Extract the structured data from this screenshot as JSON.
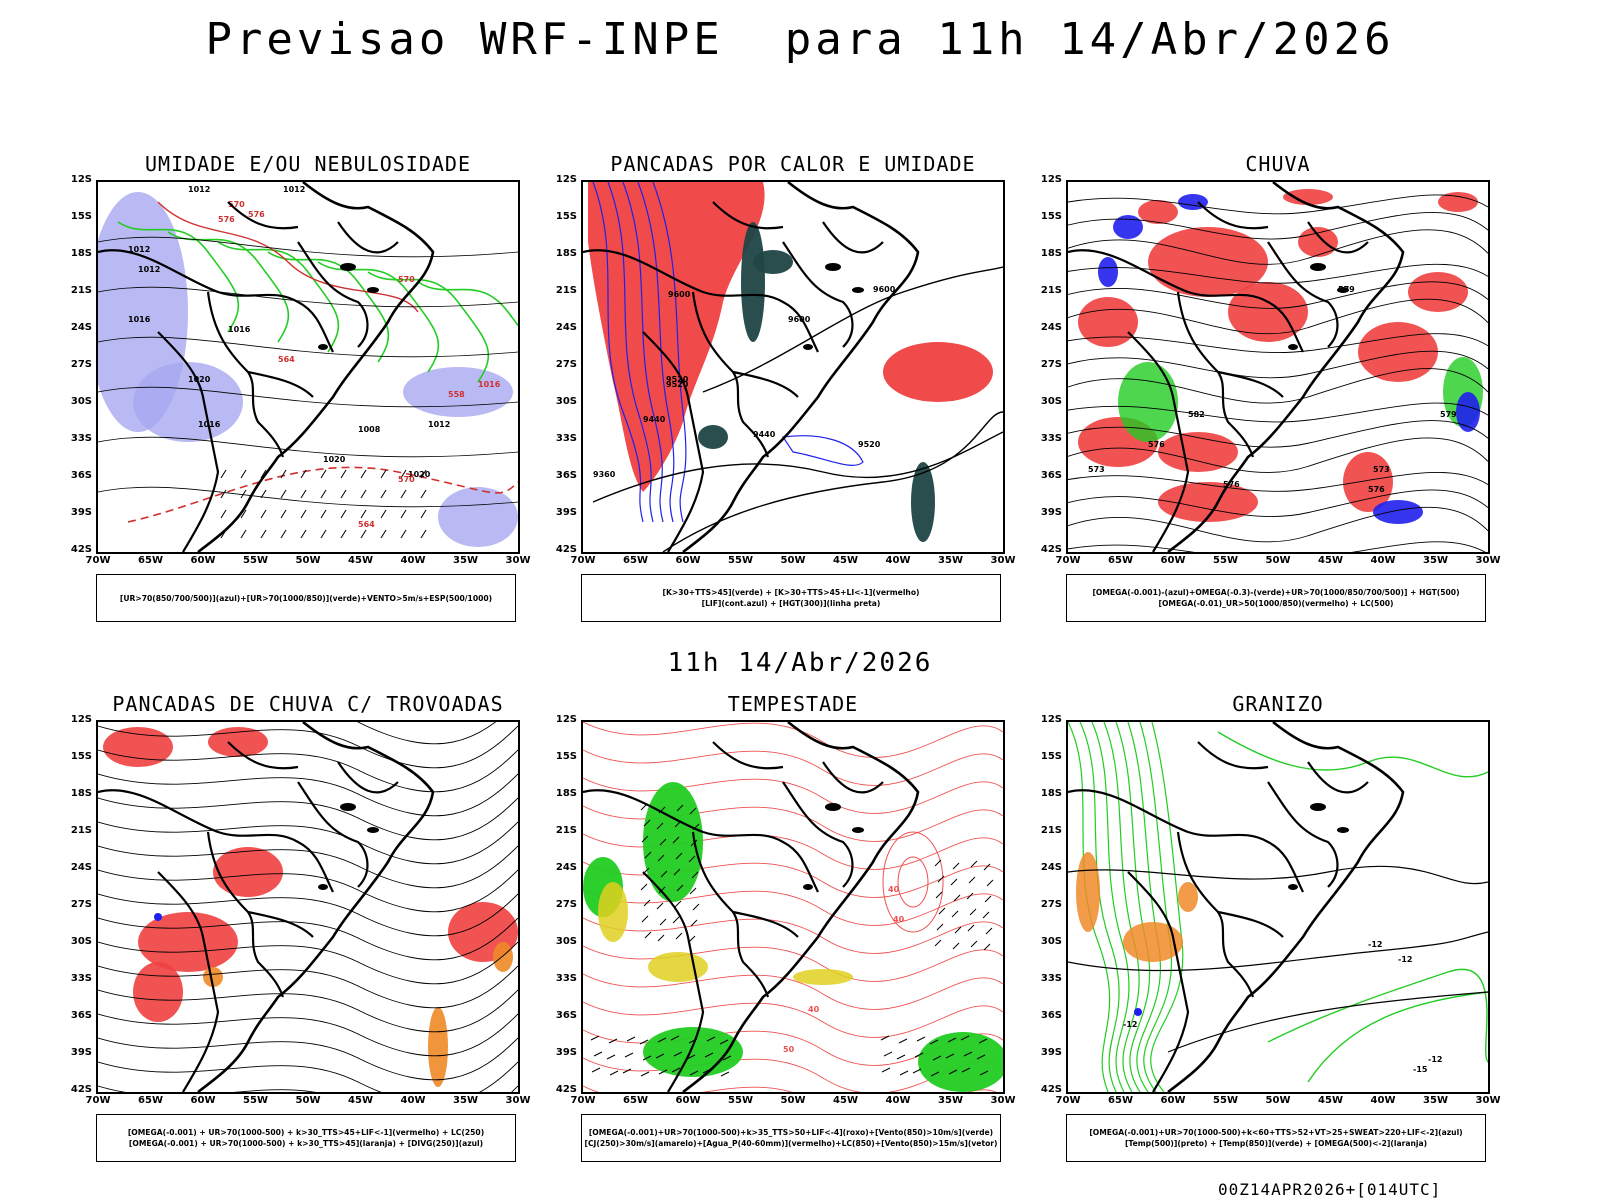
{
  "main_title": "Previsao WRF-INPE  para 11h 14/Abr/2026",
  "mid_title": "11h 14/Abr/2026",
  "footer": "00Z14APR2026+[014UTC]",
  "lat_ticks": [
    "12S",
    "15S",
    "18S",
    "21S",
    "24S",
    "27S",
    "30S",
    "33S",
    "36S",
    "39S",
    "42S"
  ],
  "lon_ticks": [
    "70W",
    "65W",
    "60W",
    "55W",
    "50W",
    "45W",
    "40W",
    "35W",
    "30W"
  ],
  "colors": {
    "red": "#f04040",
    "blue": "#2020ee",
    "green": "#22cc22",
    "lavender": "#a8a8f0",
    "darkteal": "#1f4545",
    "orange": "#f08a28",
    "yellow": "#e0d020",
    "black": "#000000"
  },
  "panels": [
    {
      "title": "UMIDADE E/OU NEBULOSIDADE",
      "legend": [
        "[UR>70(850/700/500)](azul)+[UR>70(1000/850)](verde)+VENTO>5m/s+ESP(500/1000)"
      ],
      "contour_labels": [
        "1012",
        "1012",
        "1012",
        "1016",
        "1016",
        "1016",
        "1008",
        "1012",
        "1020",
        "1020",
        "1020",
        "1012",
        "570",
        "576",
        "576",
        "570",
        "564",
        "558",
        "564",
        "570",
        "1016"
      ]
    },
    {
      "title": "PANCADAS POR CALOR E UMIDADE",
      "legend": [
        "[K>30+TTS>45](verde) + [K>30+TTS>45+LI<-1](vermelho)",
        "[LIF](cont.azul) + [HGT(300)](linha preta)"
      ],
      "contour_labels": [
        "9600",
        "9600",
        "9600",
        "9520",
        "9520",
        "9440",
        "9440",
        "9520",
        "9360"
      ]
    },
    {
      "title": "CHUVA",
      "legend": [
        "[OMEGA(-0.001)-(azul)+OMEGA(-0.3)-(verde)+UR>70(1000/850/700/500)] + HGT(500)",
        "[OMEGA(-0.01)_UR>50(1000/850)(vermelho) + LC(500)"
      ],
      "contour_labels": [
        "576",
        "576",
        "573",
        "573",
        "576",
        "579",
        "579",
        "582"
      ]
    },
    {
      "title": "PANCADAS DE CHUVA C/ TROVOADAS",
      "legend": [
        "[OMEGA(-0.001) + UR>70(1000-500) + k>30_TTS>45+LIF<-1](vermelho) + LC(250)",
        "[OMEGA(-0.001) + UR>70(1000-500) + k>30_TTS>45](laranja) + [DIVG(250)](azul)"
      ],
      "contour_labels": []
    },
    {
      "title": "TEMPESTADE",
      "legend": [
        "[OMEGA(-0.001)+UR>70(1000-500)+k>35_TTS>50+LIF<-4](roxo)+[Vento(850)>10m/s](verde)",
        "[CJ(250)>30m/s](amarelo)+[Agua_P(40-60mm)](vermelho)+LC(850)+[Vento(850)>15m/s](vetor)"
      ],
      "contour_labels": [
        "40",
        "40",
        "40",
        "50"
      ]
    },
    {
      "title": "GRANIZO",
      "legend": [
        "[OMEGA(-0.001)+UR>70(1000-500)+k<60+TTS>52+VT>25+SWEAT>220+LIF<-2](azul)",
        "[Temp(500)](preto) + [Temp(850)](verde) + [OMEGA(500)<-2](laranja)"
      ],
      "contour_labels": [
        "-12",
        "-12",
        "-12",
        "-12",
        "-15"
      ]
    }
  ]
}
